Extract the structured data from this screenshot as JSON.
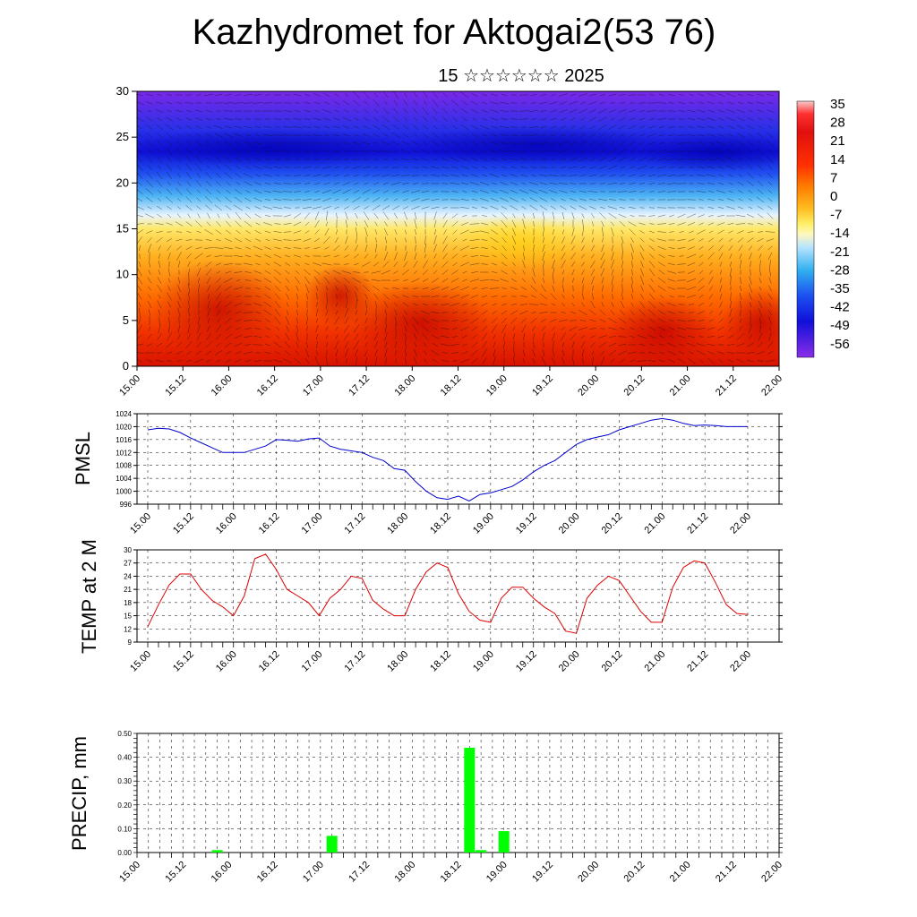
{
  "title": "Kazhydromet for Aktogai2(53 76)",
  "subtitle": "15 ☆☆☆☆☆☆ 2025",
  "time_labels": [
    "15.00",
    "15.12",
    "16.00",
    "16.12",
    "17.00",
    "17.12",
    "18.00",
    "18.12",
    "19.00",
    "19.12",
    "20.00",
    "20.12",
    "21.00",
    "21.12",
    "22.00"
  ],
  "colors": {
    "pmsl_line": "#0000cc",
    "temp_line": "#dd0000",
    "precip_bar": "#00ff00",
    "frame": "#000000"
  },
  "chart_data": [
    {
      "type": "heatmap",
      "title": "",
      "xlabel": "",
      "ylabel": "",
      "ylim": [
        0,
        30
      ],
      "y_ticks": [
        "0",
        "5",
        "10",
        "15",
        "20",
        "25",
        "30"
      ],
      "x_ticks": [
        "15.00",
        "15.12",
        "16.00",
        "16.12",
        "17.00",
        "17.12",
        "18.00",
        "18.12",
        "19.00",
        "19.12",
        "20.00",
        "20.12",
        "21.00",
        "21.12",
        "22.00"
      ],
      "colorbar_labels": [
        "35",
        "28",
        "21",
        "14",
        "7",
        "0",
        "-7",
        "-14",
        "-21",
        "-28",
        "-35",
        "-42",
        "-49",
        "-56"
      ],
      "overlay": "wind vectors"
    },
    {
      "type": "line",
      "ylabel": "PMSL",
      "ylim": [
        996,
        1024
      ],
      "y_ticks": [
        "996",
        "1000",
        "1004",
        "1008",
        "1012",
        "1016",
        "1020",
        "1024"
      ],
      "x": [
        "15.00",
        "15.03",
        "15.06",
        "15.09",
        "15.12",
        "15.15",
        "15.18",
        "15.21",
        "16.00",
        "16.03",
        "16.06",
        "16.09",
        "16.12",
        "16.15",
        "16.18",
        "16.21",
        "17.00",
        "17.03",
        "17.06",
        "17.09",
        "17.12",
        "17.15",
        "17.18",
        "17.21",
        "18.00",
        "18.03",
        "18.06",
        "18.09",
        "18.12",
        "18.15",
        "18.18",
        "18.21",
        "19.00",
        "19.03",
        "19.06",
        "19.09",
        "19.12",
        "19.15",
        "19.18",
        "19.21",
        "20.00",
        "20.03",
        "20.06",
        "20.09",
        "20.12",
        "20.15",
        "20.18",
        "20.21",
        "21.00",
        "21.03",
        "21.06",
        "21.09",
        "21.12",
        "21.15",
        "21.18",
        "21.21",
        "22.00"
      ],
      "series": [
        {
          "values": [
            1019,
            1019.5,
            1019.3,
            1018.2,
            1016.5,
            1015,
            1013.5,
            1012,
            1012,
            1012,
            1013,
            1014,
            1016,
            1015.8,
            1015.5,
            1016.2,
            1016.5,
            1014,
            1013,
            1012.5,
            1012,
            1010.5,
            1009.5,
            1007,
            1006.5,
            1003,
            1000,
            998,
            997.5,
            998.5,
            997,
            999,
            999.5,
            1000.5,
            1001.5,
            1003.5,
            1006,
            1008,
            1009.5,
            1012,
            1014.5,
            1016,
            1016.8,
            1017.5,
            1019,
            1020,
            1021,
            1022,
            1022.5,
            1022,
            1021,
            1020.3,
            1020.5,
            1020.3,
            1020,
            1020,
            1020
          ]
        }
      ]
    },
    {
      "type": "line",
      "ylabel": "TEMP at 2 M",
      "ylim": [
        9,
        30
      ],
      "y_ticks": [
        "9",
        "12",
        "15",
        "18",
        "21",
        "24",
        "27",
        "30"
      ],
      "x": [
        "15.00",
        "15.03",
        "15.06",
        "15.09",
        "15.12",
        "15.15",
        "15.18",
        "15.21",
        "16.00",
        "16.03",
        "16.06",
        "16.09",
        "16.12",
        "16.15",
        "16.18",
        "16.21",
        "17.00",
        "17.03",
        "17.06",
        "17.09",
        "17.12",
        "17.15",
        "17.18",
        "17.21",
        "18.00",
        "18.03",
        "18.06",
        "18.09",
        "18.12",
        "18.15",
        "18.18",
        "18.21",
        "19.00",
        "19.03",
        "19.06",
        "19.09",
        "19.12",
        "19.15",
        "19.18",
        "19.21",
        "20.00",
        "20.03",
        "20.06",
        "20.09",
        "20.12",
        "20.15",
        "20.18",
        "20.21",
        "21.00",
        "21.03",
        "21.06",
        "21.09",
        "21.12",
        "21.15",
        "21.18",
        "21.21",
        "22.00"
      ],
      "series": [
        {
          "values": [
            12.5,
            17.5,
            22,
            24.5,
            24.5,
            21,
            18.5,
            17,
            15,
            19.5,
            28,
            29,
            25.5,
            21,
            19.5,
            18,
            15,
            19,
            21,
            24,
            23.5,
            18.5,
            16.5,
            15,
            15,
            21,
            25,
            27,
            26,
            20,
            16,
            14,
            13.5,
            19,
            21.5,
            21.5,
            19,
            17,
            15.5,
            11.5,
            11,
            19,
            22,
            24,
            23,
            19.5,
            16,
            13.5,
            13.5,
            21.5,
            26,
            27.5,
            27,
            22.5,
            17.5,
            15.5,
            15.3
          ]
        }
      ]
    },
    {
      "type": "bar",
      "ylabel": "PRECIP, mm",
      "ylim": [
        0,
        0.5
      ],
      "y_ticks": [
        "0.00",
        "0.10",
        "0.20",
        "0.30",
        "0.40",
        "0.50"
      ],
      "x_ticks": [
        "15.00",
        "15.12",
        "16.00",
        "16.12",
        "17.00",
        "17.12",
        "18.00",
        "18.12",
        "19.00",
        "19.12",
        "20.00",
        "20.12",
        "21.00",
        "21.12",
        "22.00"
      ],
      "x": [
        "15.21",
        "17.03",
        "18.15",
        "18.18",
        "19.00"
      ],
      "values": [
        0.01,
        0.07,
        0.44,
        0.01,
        0.09
      ]
    }
  ]
}
